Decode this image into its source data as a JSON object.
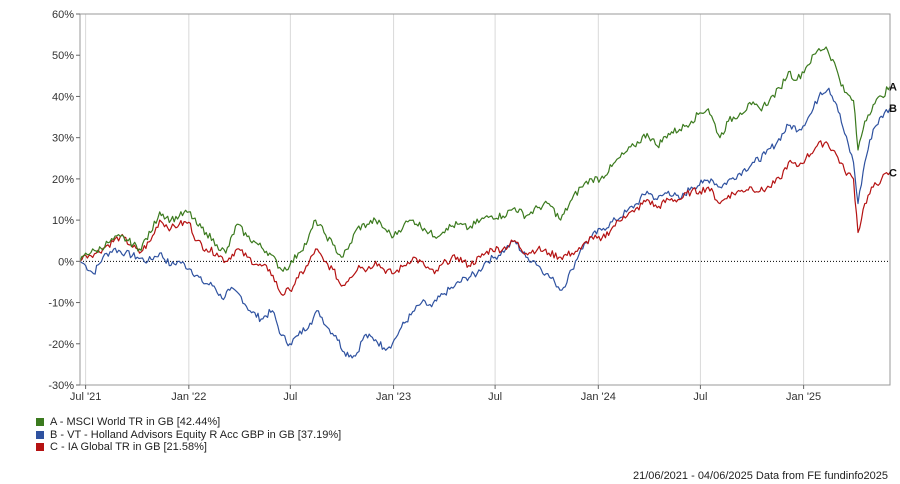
{
  "chart_data": {
    "type": "line",
    "y_axis": {
      "min": -30,
      "max": 60,
      "step": 10,
      "unit": "%",
      "tick_labels": [
        "60%",
        "50%",
        "40%",
        "30%",
        "20%",
        "10%",
        "0%",
        "-10%",
        "-20%",
        "-30%"
      ]
    },
    "x_axis": {
      "start": "2021-06-21",
      "end": "2025-06-04",
      "ticks": [
        {
          "date": "2021-07-01",
          "label": "Jul '21"
        },
        {
          "date": "2022-01-01",
          "label": "Jan '22"
        },
        {
          "date": "2022-07-01",
          "label": "Jul"
        },
        {
          "date": "2023-01-01",
          "label": "Jan '23"
        },
        {
          "date": "2023-07-01",
          "label": "Jul"
        },
        {
          "date": "2024-01-01",
          "label": "Jan '24"
        },
        {
          "date": "2024-07-01",
          "label": "Jul"
        },
        {
          "date": "2025-01-01",
          "label": "Jan '25"
        }
      ]
    },
    "grid": {
      "vertical": true,
      "horizontal": false,
      "zero_line": "dotted"
    },
    "series": [
      {
        "id": "A",
        "name": "A - MSCI World TR in GB [42.44%]",
        "color": "#3b7a1e",
        "points": [
          [
            "2021-06-21",
            0
          ],
          [
            "2021-07-01",
            2
          ],
          [
            "2021-07-20",
            2.5
          ],
          [
            "2021-08-10",
            4.5
          ],
          [
            "2021-09-01",
            6
          ],
          [
            "2021-09-15",
            5
          ],
          [
            "2021-10-05",
            3
          ],
          [
            "2021-10-25",
            7
          ],
          [
            "2021-11-10",
            12
          ],
          [
            "2021-11-30",
            10
          ],
          [
            "2021-12-15",
            11
          ],
          [
            "2022-01-01",
            12
          ],
          [
            "2022-01-15",
            9
          ],
          [
            "2022-02-01",
            7
          ],
          [
            "2022-02-20",
            4
          ],
          [
            "2022-03-08",
            2
          ],
          [
            "2022-03-28",
            9
          ],
          [
            "2022-04-15",
            6
          ],
          [
            "2022-05-05",
            4
          ],
          [
            "2022-05-25",
            2
          ],
          [
            "2022-06-15",
            -2
          ],
          [
            "2022-06-30",
            -1
          ],
          [
            "2022-07-15",
            2
          ],
          [
            "2022-08-01",
            5
          ],
          [
            "2022-08-15",
            10
          ],
          [
            "2022-08-30",
            7
          ],
          [
            "2022-09-15",
            4
          ],
          [
            "2022-09-30",
            1
          ],
          [
            "2022-10-12",
            3
          ],
          [
            "2022-10-28",
            8
          ],
          [
            "2022-11-15",
            9
          ],
          [
            "2022-11-30",
            10
          ],
          [
            "2022-12-15",
            8
          ],
          [
            "2023-01-01",
            6
          ],
          [
            "2023-01-20",
            9
          ],
          [
            "2023-02-05",
            10
          ],
          [
            "2023-02-25",
            8
          ],
          [
            "2023-03-15",
            6
          ],
          [
            "2023-04-05",
            8
          ],
          [
            "2023-04-25",
            9
          ],
          [
            "2023-05-15",
            8
          ],
          [
            "2023-06-05",
            10
          ],
          [
            "2023-06-25",
            11
          ],
          [
            "2023-07-15",
            11
          ],
          [
            "2023-08-05",
            13
          ],
          [
            "2023-08-25",
            11
          ],
          [
            "2023-09-15",
            13
          ],
          [
            "2023-10-05",
            14
          ],
          [
            "2023-10-26",
            10
          ],
          [
            "2023-11-15",
            15
          ],
          [
            "2023-12-01",
            18
          ],
          [
            "2023-12-20",
            20
          ],
          [
            "2024-01-05",
            20
          ],
          [
            "2024-01-25",
            23
          ],
          [
            "2024-02-15",
            26
          ],
          [
            "2024-03-05",
            28
          ],
          [
            "2024-03-28",
            31
          ],
          [
            "2024-04-15",
            28
          ],
          [
            "2024-05-05",
            31
          ],
          [
            "2024-05-25",
            32
          ],
          [
            "2024-06-15",
            34
          ],
          [
            "2024-06-30",
            36
          ],
          [
            "2024-07-15",
            37
          ],
          [
            "2024-08-05",
            30
          ],
          [
            "2024-08-20",
            34
          ],
          [
            "2024-09-10",
            36
          ],
          [
            "2024-09-30",
            38
          ],
          [
            "2024-10-15",
            37
          ],
          [
            "2024-11-01",
            39
          ],
          [
            "2024-11-20",
            42
          ],
          [
            "2024-12-05",
            46
          ],
          [
            "2024-12-20",
            44
          ],
          [
            "2025-01-05",
            47
          ],
          [
            "2025-01-25",
            51
          ],
          [
            "2025-02-10",
            52
          ],
          [
            "2025-02-28",
            47
          ],
          [
            "2025-03-15",
            41
          ],
          [
            "2025-03-31",
            39
          ],
          [
            "2025-04-08",
            27
          ],
          [
            "2025-04-20",
            34
          ],
          [
            "2025-05-05",
            38
          ],
          [
            "2025-05-20",
            40
          ],
          [
            "2025-06-04",
            42.44
          ]
        ]
      },
      {
        "id": "B",
        "name": "B - VT - Holland Advisors Equity R Acc GBP in GB [37.19%]",
        "color": "#2f52a0",
        "points": [
          [
            "2021-06-21",
            0
          ],
          [
            "2021-07-01",
            -1
          ],
          [
            "2021-07-15",
            -3
          ],
          [
            "2021-08-01",
            1
          ],
          [
            "2021-08-20",
            3
          ],
          [
            "2021-09-10",
            2
          ],
          [
            "2021-10-01",
            1
          ],
          [
            "2021-10-20",
            0
          ],
          [
            "2021-11-10",
            2
          ],
          [
            "2021-11-30",
            -1
          ],
          [
            "2021-12-15",
            0
          ],
          [
            "2022-01-05",
            -2
          ],
          [
            "2022-01-25",
            -5
          ],
          [
            "2022-02-15",
            -6
          ],
          [
            "2022-03-01",
            -9
          ],
          [
            "2022-03-15",
            -7
          ],
          [
            "2022-04-01",
            -8
          ],
          [
            "2022-04-20",
            -12
          ],
          [
            "2022-05-10",
            -14
          ],
          [
            "2022-05-30",
            -12
          ],
          [
            "2022-06-15",
            -18
          ],
          [
            "2022-06-30",
            -20
          ],
          [
            "2022-07-15",
            -18
          ],
          [
            "2022-08-05",
            -15
          ],
          [
            "2022-08-20",
            -12
          ],
          [
            "2022-09-05",
            -16
          ],
          [
            "2022-09-20",
            -18
          ],
          [
            "2022-10-05",
            -22
          ],
          [
            "2022-10-25",
            -23
          ],
          [
            "2022-11-10",
            -18
          ],
          [
            "2022-11-30",
            -19
          ],
          [
            "2022-12-15",
            -21
          ],
          [
            "2022-12-30",
            -20
          ],
          [
            "2023-01-15",
            -16
          ],
          [
            "2023-02-01",
            -13
          ],
          [
            "2023-02-20",
            -10
          ],
          [
            "2023-03-10",
            -11
          ],
          [
            "2023-03-30",
            -8
          ],
          [
            "2023-04-20",
            -6
          ],
          [
            "2023-05-10",
            -4
          ],
          [
            "2023-05-30",
            -3
          ],
          [
            "2023-06-15",
            0
          ],
          [
            "2023-07-01",
            1
          ],
          [
            "2023-07-20",
            3
          ],
          [
            "2023-08-05",
            5
          ],
          [
            "2023-08-25",
            1
          ],
          [
            "2023-09-10",
            0
          ],
          [
            "2023-09-30",
            -3
          ],
          [
            "2023-10-15",
            -5
          ],
          [
            "2023-10-28",
            -7
          ],
          [
            "2023-11-15",
            -2
          ],
          [
            "2023-12-01",
            3
          ],
          [
            "2023-12-20",
            6
          ],
          [
            "2024-01-10",
            8
          ],
          [
            "2024-02-01",
            10
          ],
          [
            "2024-02-20",
            12
          ],
          [
            "2024-03-10",
            14
          ],
          [
            "2024-03-28",
            17
          ],
          [
            "2024-04-15",
            15
          ],
          [
            "2024-05-05",
            17
          ],
          [
            "2024-05-25",
            15
          ],
          [
            "2024-06-15",
            18
          ],
          [
            "2024-07-05",
            19
          ],
          [
            "2024-07-20",
            20
          ],
          [
            "2024-08-05",
            18
          ],
          [
            "2024-08-25",
            20
          ],
          [
            "2024-09-15",
            22
          ],
          [
            "2024-10-05",
            24
          ],
          [
            "2024-10-25",
            26
          ],
          [
            "2024-11-15",
            29
          ],
          [
            "2024-12-05",
            33
          ],
          [
            "2024-12-25",
            32
          ],
          [
            "2025-01-15",
            36
          ],
          [
            "2025-01-31",
            41
          ],
          [
            "2025-02-15",
            42
          ],
          [
            "2025-03-01",
            38
          ],
          [
            "2025-03-15",
            31
          ],
          [
            "2025-03-31",
            24
          ],
          [
            "2025-04-08",
            14
          ],
          [
            "2025-04-20",
            24
          ],
          [
            "2025-05-05",
            32
          ],
          [
            "2025-05-25",
            36
          ],
          [
            "2025-06-04",
            37.19
          ]
        ]
      },
      {
        "id": "C",
        "name": "C - IA Global TR in GB [21.58%]",
        "color": "#b51212",
        "points": [
          [
            "2021-06-21",
            0
          ],
          [
            "2021-07-01",
            1.5
          ],
          [
            "2021-07-20",
            2
          ],
          [
            "2021-08-10",
            4
          ],
          [
            "2021-09-01",
            6
          ],
          [
            "2021-09-20",
            4
          ],
          [
            "2021-10-05",
            2
          ],
          [
            "2021-10-25",
            5
          ],
          [
            "2021-11-10",
            10
          ],
          [
            "2021-11-30",
            8
          ],
          [
            "2021-12-15",
            9
          ],
          [
            "2022-01-01",
            9.5
          ],
          [
            "2022-01-15",
            5
          ],
          [
            "2022-02-01",
            3
          ],
          [
            "2022-02-20",
            2
          ],
          [
            "2022-03-08",
            0
          ],
          [
            "2022-03-28",
            3
          ],
          [
            "2022-04-15",
            1
          ],
          [
            "2022-05-05",
            -1
          ],
          [
            "2022-05-25",
            -2
          ],
          [
            "2022-06-15",
            -8
          ],
          [
            "2022-06-30",
            -7
          ],
          [
            "2022-07-15",
            -4
          ],
          [
            "2022-08-01",
            -1
          ],
          [
            "2022-08-15",
            3
          ],
          [
            "2022-08-30",
            0
          ],
          [
            "2022-09-15",
            -2
          ],
          [
            "2022-09-30",
            -6
          ],
          [
            "2022-10-15",
            -4
          ],
          [
            "2022-10-31",
            -1
          ],
          [
            "2022-11-15",
            -2
          ],
          [
            "2022-11-30",
            0
          ],
          [
            "2022-12-15",
            -2
          ],
          [
            "2023-01-01",
            -3
          ],
          [
            "2023-01-20",
            -1
          ],
          [
            "2023-02-05",
            1
          ],
          [
            "2023-02-25",
            -1
          ],
          [
            "2023-03-15",
            -3
          ],
          [
            "2023-04-05",
            0
          ],
          [
            "2023-04-25",
            1
          ],
          [
            "2023-05-15",
            -1
          ],
          [
            "2023-06-05",
            1
          ],
          [
            "2023-06-25",
            3
          ],
          [
            "2023-07-15",
            3
          ],
          [
            "2023-08-05",
            5
          ],
          [
            "2023-08-25",
            2
          ],
          [
            "2023-09-15",
            3
          ],
          [
            "2023-10-05",
            2
          ],
          [
            "2023-10-26",
            1
          ],
          [
            "2023-11-15",
            2
          ],
          [
            "2023-12-01",
            3
          ],
          [
            "2023-12-20",
            6
          ],
          [
            "2024-01-05",
            5
          ],
          [
            "2024-01-25",
            8
          ],
          [
            "2024-02-15",
            11
          ],
          [
            "2024-03-05",
            12
          ],
          [
            "2024-03-28",
            15
          ],
          [
            "2024-04-15",
            13
          ],
          [
            "2024-05-05",
            15
          ],
          [
            "2024-05-25",
            15
          ],
          [
            "2024-06-15",
            17
          ],
          [
            "2024-06-30",
            17
          ],
          [
            "2024-07-15",
            18
          ],
          [
            "2024-08-05",
            14
          ],
          [
            "2024-08-20",
            16
          ],
          [
            "2024-09-10",
            17
          ],
          [
            "2024-09-30",
            18
          ],
          [
            "2024-10-15",
            17
          ],
          [
            "2024-11-01",
            18
          ],
          [
            "2024-11-20",
            20
          ],
          [
            "2024-12-05",
            24
          ],
          [
            "2024-12-20",
            23
          ],
          [
            "2025-01-05",
            25
          ],
          [
            "2025-01-25",
            28
          ],
          [
            "2025-02-10",
            29
          ],
          [
            "2025-02-28",
            26
          ],
          [
            "2025-03-15",
            22
          ],
          [
            "2025-03-31",
            20
          ],
          [
            "2025-04-08",
            7
          ],
          [
            "2025-04-20",
            14
          ],
          [
            "2025-05-05",
            18
          ],
          [
            "2025-05-20",
            20
          ],
          [
            "2025-06-04",
            21.58
          ]
        ]
      }
    ],
    "footer": "21/06/2021 - 04/06/2025 Data from FE fundinfo2025"
  }
}
